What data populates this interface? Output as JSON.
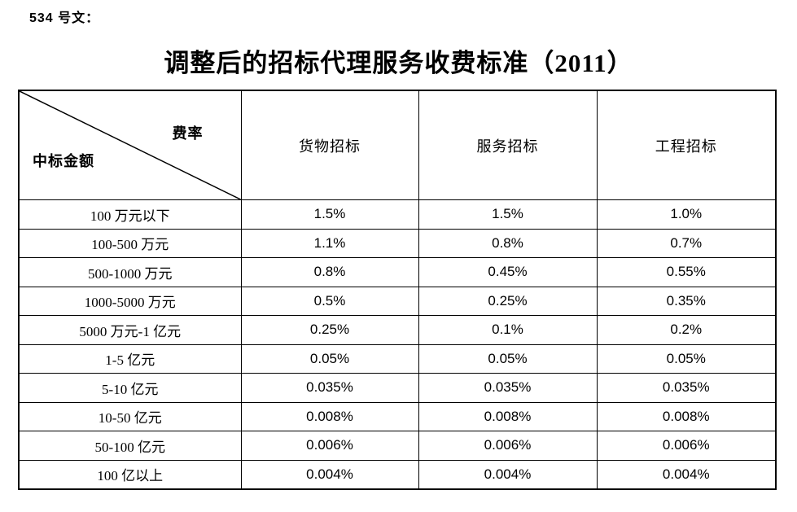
{
  "doc": {
    "doc_number": "534 号文：",
    "title": "调整后的招标代理服务收费标准（2011）"
  },
  "table": {
    "corner": {
      "top_right_label": "费率",
      "bottom_left_label": "中标金额"
    },
    "columns": [
      "货物招标",
      "服务招标",
      "工程招标"
    ],
    "rows": [
      {
        "label": "100 万元以下",
        "values": [
          "1.5%",
          "1.5%",
          "1.0%"
        ]
      },
      {
        "label": "100-500 万元",
        "values": [
          "1.1%",
          "0.8%",
          "0.7%"
        ]
      },
      {
        "label": "500-1000 万元",
        "values": [
          "0.8%",
          "0.45%",
          "0.55%"
        ]
      },
      {
        "label": "1000-5000 万元",
        "values": [
          "0.5%",
          "0.25%",
          "0.35%"
        ]
      },
      {
        "label": "5000 万元-1 亿元",
        "values": [
          "0.25%",
          "0.1%",
          "0.2%"
        ]
      },
      {
        "label": "1-5 亿元",
        "values": [
          "0.05%",
          "0.05%",
          "0.05%"
        ]
      },
      {
        "label": "5-10 亿元",
        "values": [
          "0.035%",
          "0.035%",
          "0.035%"
        ]
      },
      {
        "label": "10-50 亿元",
        "values": [
          "0.008%",
          "0.008%",
          "0.008%"
        ]
      },
      {
        "label": "50-100 亿元",
        "values": [
          "0.006%",
          "0.006%",
          "0.006%"
        ]
      },
      {
        "label": "100 亿以上",
        "values": [
          "0.004%",
          "0.004%",
          "0.004%"
        ]
      }
    ]
  },
  "colors": {
    "text": "#000000",
    "border": "#000000",
    "background": "#ffffff"
  }
}
